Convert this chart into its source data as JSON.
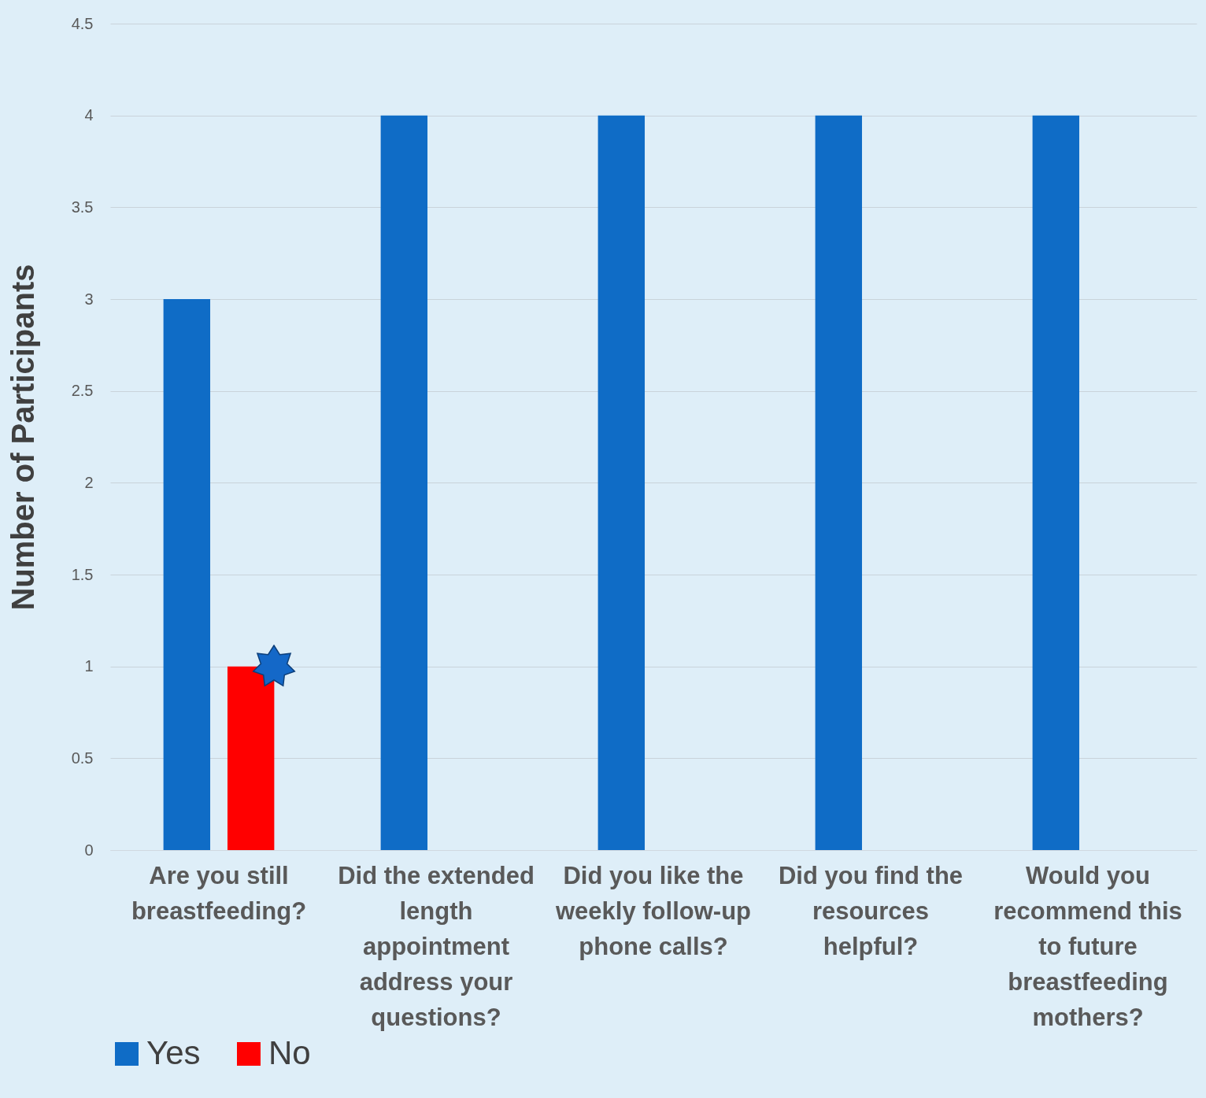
{
  "chart_data": {
    "type": "bar",
    "ylabel": "Number of Participants",
    "categories": [
      "Are you still breastfeeding?",
      "Did the extended length appointment address your questions?",
      "Did you like the weekly follow-up phone calls?",
      "Did you find the resources helpful?",
      "Would you recommend this to future breastfeeding mothers?"
    ],
    "series": [
      {
        "name": "Yes",
        "color": "#0f6cc6",
        "values": [
          3,
          4,
          4,
          4,
          4
        ]
      },
      {
        "name": "No",
        "color": "#ff0000",
        "values": [
          1,
          0,
          0,
          0,
          0
        ]
      }
    ],
    "ylim": [
      0,
      4.5
    ],
    "yticks": [
      0,
      0.5,
      1,
      1.5,
      2,
      2.5,
      3,
      3.5,
      4,
      4.5
    ],
    "grid": "y",
    "legend": "bottom"
  }
}
